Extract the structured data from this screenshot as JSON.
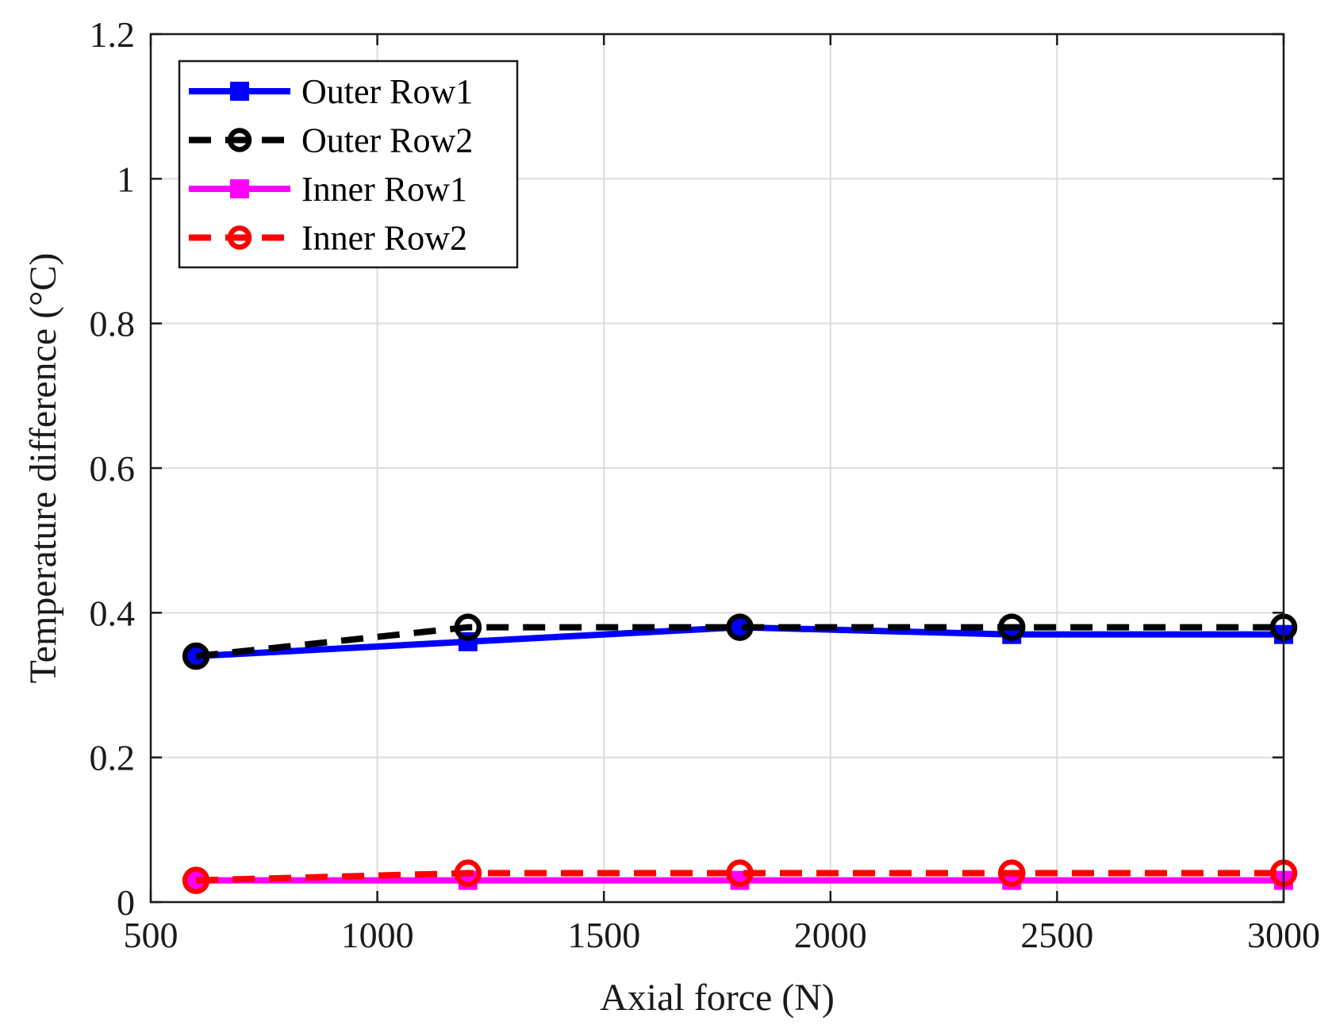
{
  "chart_data": {
    "type": "line",
    "title": "",
    "xlabel": "Axial force (N)",
    "ylabel": "Temperature difference (°C)",
    "xlim": [
      500,
      3000
    ],
    "ylim": [
      0,
      1.2
    ],
    "xticks": [
      500,
      1000,
      1500,
      2000,
      2500,
      3000
    ],
    "xtick_labels": [
      "500",
      "1000",
      "1500",
      "2000",
      "2500",
      "3000"
    ],
    "yticks": [
      0,
      0.2,
      0.4,
      0.6,
      0.8,
      1,
      1.2
    ],
    "ytick_labels": [
      "0",
      "0.2",
      "0.4",
      "0.6",
      "0.8",
      "1",
      "1.2"
    ],
    "grid": true,
    "legend_position": "top-left",
    "x": [
      600,
      1200,
      1800,
      2400,
      3000
    ],
    "series": [
      {
        "name": "Outer Row1",
        "values": [
          0.34,
          0.36,
          0.38,
          0.37,
          0.37
        ],
        "color": "#0000ff",
        "style": "solid",
        "marker": "square"
      },
      {
        "name": "Outer Row2",
        "values": [
          0.34,
          0.38,
          0.38,
          0.38,
          0.38
        ],
        "color": "#000000",
        "style": "dashed",
        "marker": "circle"
      },
      {
        "name": "Inner Row1",
        "values": [
          0.03,
          0.03,
          0.03,
          0.03,
          0.03
        ],
        "color": "#ff00ff",
        "style": "solid",
        "marker": "square"
      },
      {
        "name": "Inner Row2",
        "values": [
          0.03,
          0.04,
          0.04,
          0.04,
          0.04
        ],
        "color": "#ff0000",
        "style": "dashed",
        "marker": "circle"
      }
    ]
  }
}
